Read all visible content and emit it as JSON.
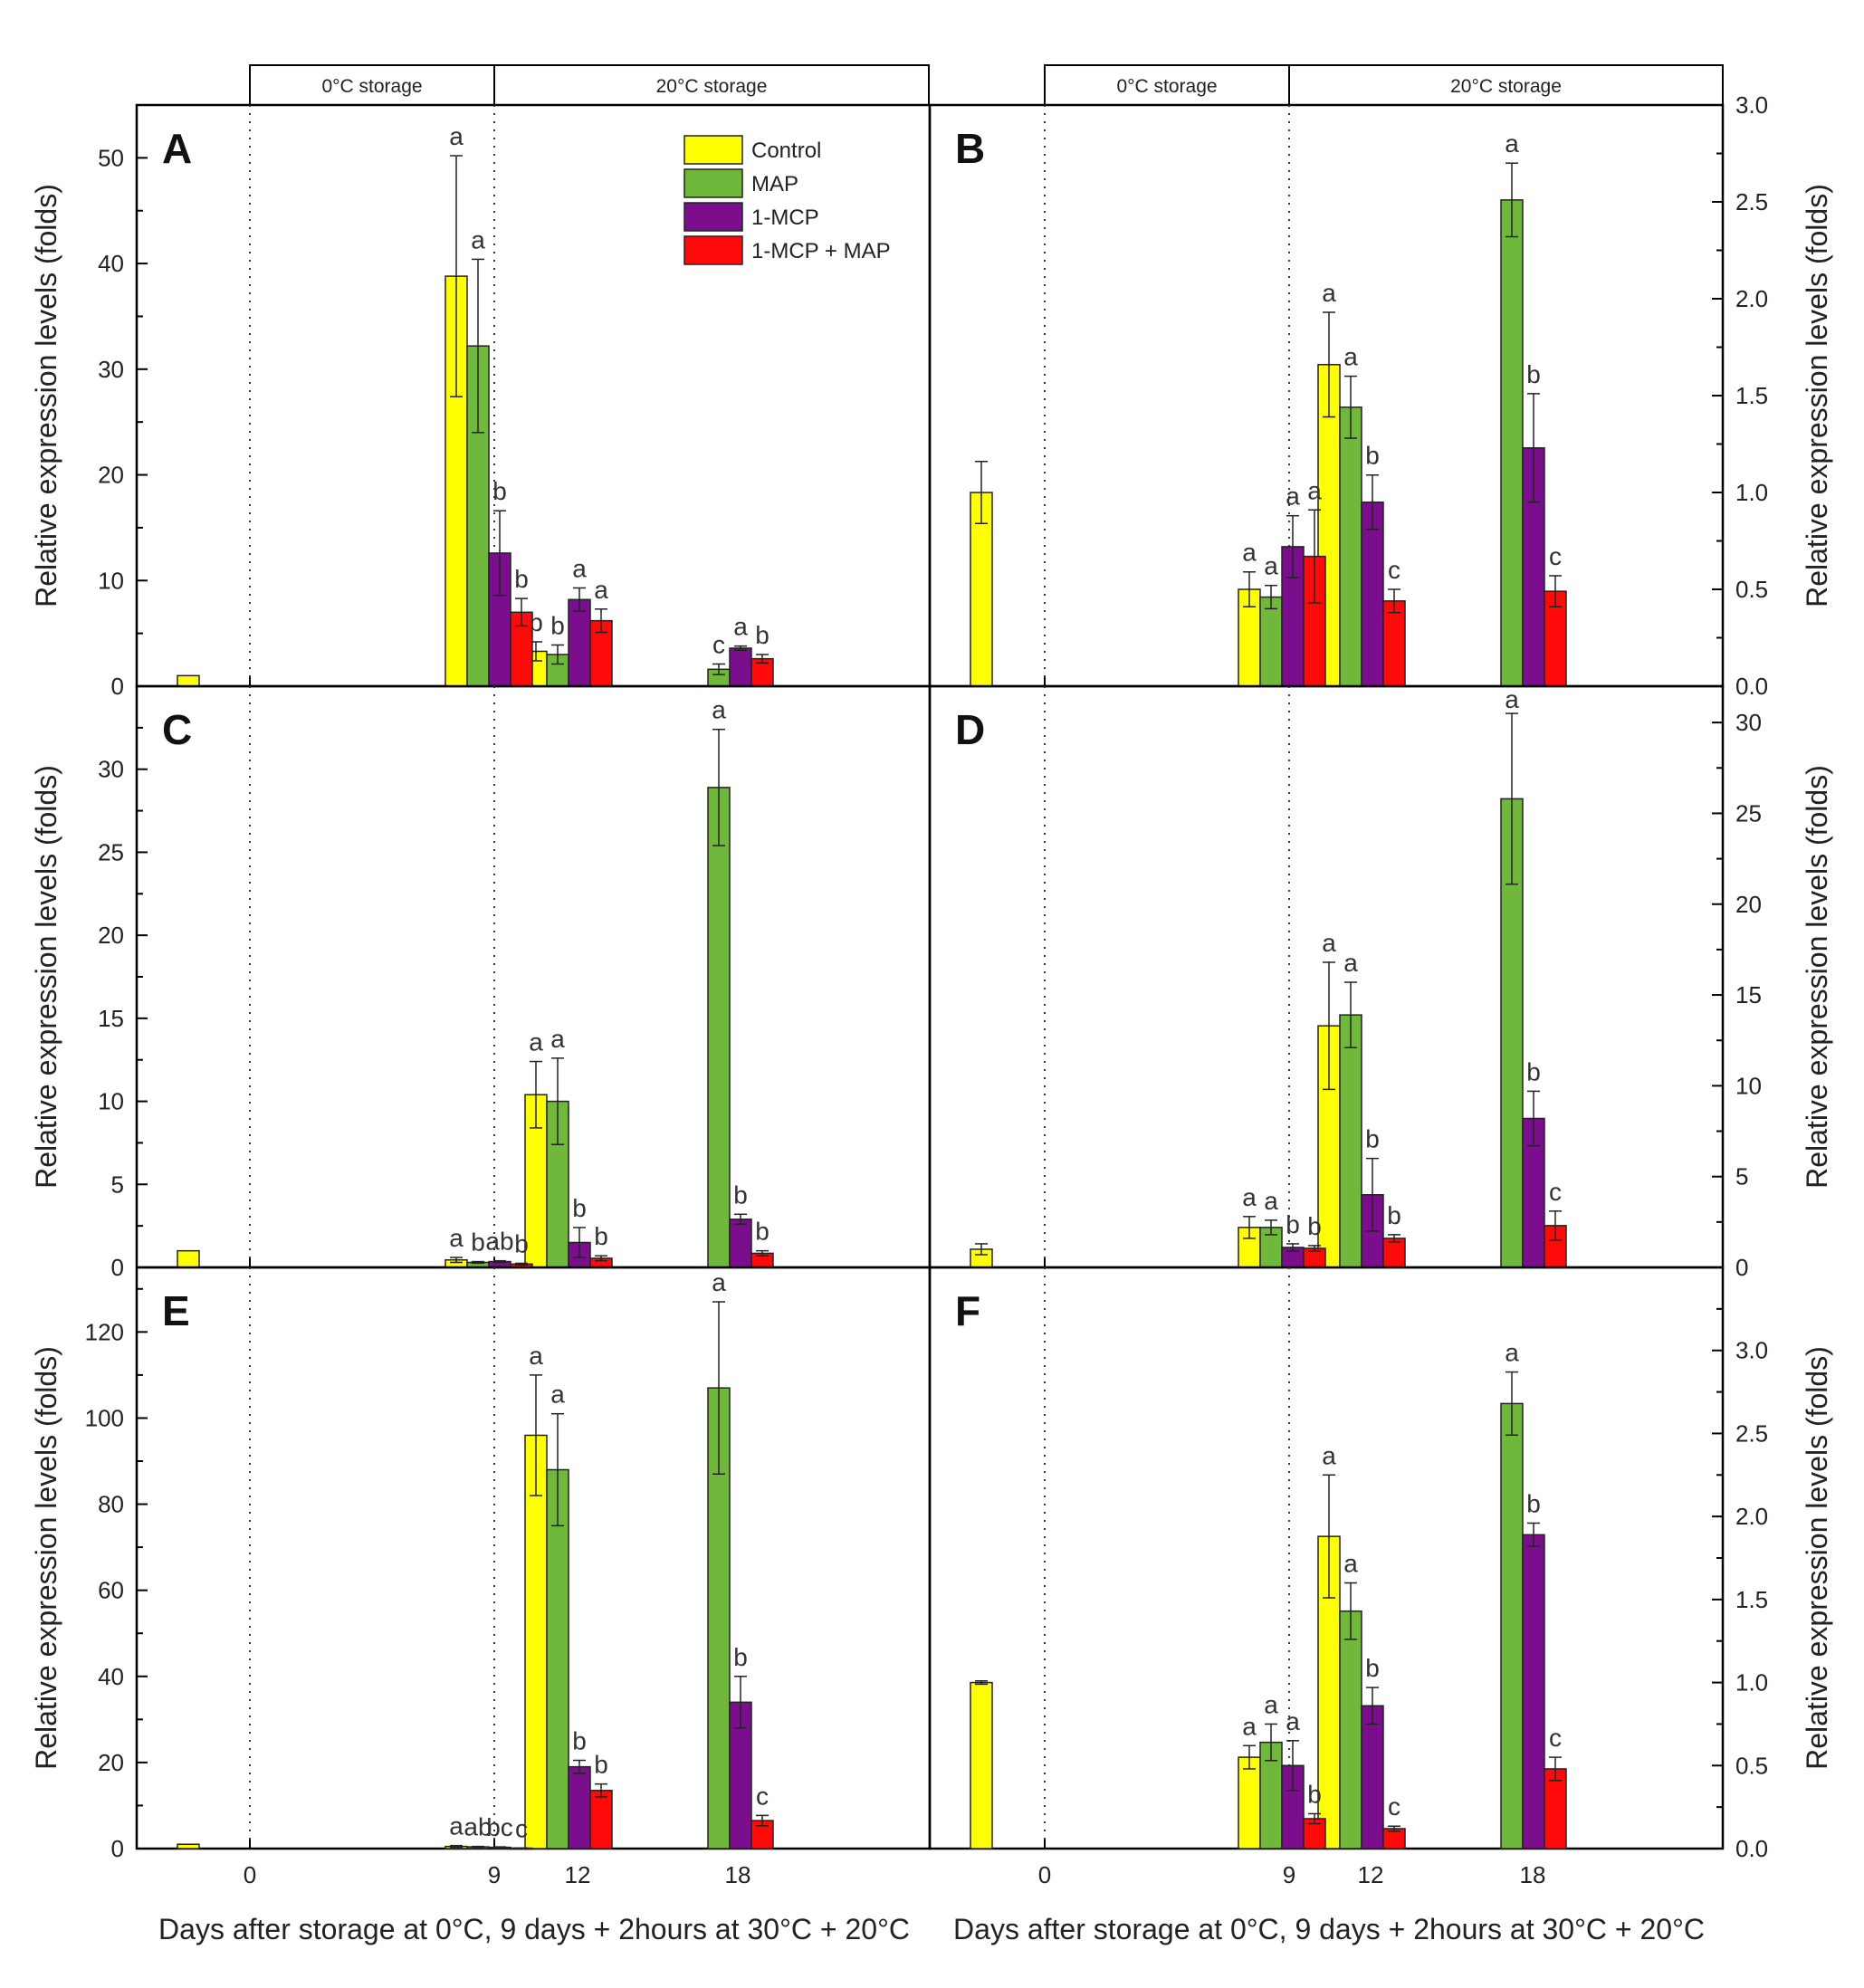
{
  "colors": {
    "Control": "#ffff00",
    "MAP": "#70b83c",
    "1-MCP": "#7a0e8c",
    "1-MCP + MAP": "#ff0a0a"
  },
  "header": {
    "cold_label": "0°C storage",
    "warm_label": "20°C storage"
  },
  "x_axis": {
    "ticks": [
      "0",
      "9",
      "12",
      "18"
    ],
    "title_left": "Days after storage at 0°C, 9 days + 2hours at 30°C + 20°C",
    "title_right": "Days after storage at 0°C, 9 days + 2hours at 30°C + 20°C"
  },
  "legend": [
    "Control",
    "MAP",
    "1-MCP",
    "1-MCP + MAP"
  ],
  "chart_data": [
    {
      "panel": "A",
      "type": "bar",
      "ylabel": "Relative expression levels (folds)",
      "ylim": [
        0,
        55
      ],
      "yticks": [
        0,
        10,
        20,
        30,
        40,
        50
      ],
      "ytick_labels": [
        "0",
        "10",
        "20",
        "30",
        "40",
        "50"
      ],
      "ytick_minor": 5,
      "series": [
        {
          "name": "Control",
          "points": [
            {
              "day": 0,
              "value": 1.0,
              "err": 0,
              "sig": ""
            },
            {
              "day": 9,
              "value": 38.8,
              "err": 11.4,
              "sig": "a"
            },
            {
              "day": 12,
              "value": 3.3,
              "err": 0.9,
              "sig": "b"
            }
          ]
        },
        {
          "name": "MAP",
          "points": [
            {
              "day": 9,
              "value": 32.2,
              "err": 8.2,
              "sig": "a"
            },
            {
              "day": 12,
              "value": 3.0,
              "err": 0.9,
              "sig": "b"
            },
            {
              "day": 18,
              "value": 1.6,
              "err": 0.5,
              "sig": "c"
            }
          ]
        },
        {
          "name": "1-MCP",
          "points": [
            {
              "day": 9,
              "value": 12.6,
              "err": 4.0,
              "sig": "b"
            },
            {
              "day": 12,
              "value": 8.2,
              "err": 1.1,
              "sig": "a"
            },
            {
              "day": 18,
              "value": 3.6,
              "err": 0.2,
              "sig": "a"
            }
          ]
        },
        {
          "name": "1-MCP + MAP",
          "points": [
            {
              "day": 9,
              "value": 7.0,
              "err": 1.3,
              "sig": "b"
            },
            {
              "day": 12,
              "value": 6.2,
              "err": 1.1,
              "sig": "a"
            },
            {
              "day": 18,
              "value": 2.6,
              "err": 0.4,
              "sig": "b"
            }
          ]
        }
      ]
    },
    {
      "panel": "B",
      "type": "bar",
      "ylabel": "Relative expression levels (folds)",
      "ylim": [
        0,
        3.0
      ],
      "yticks": [
        0,
        0.5,
        1.0,
        1.5,
        2.0,
        2.5,
        3.0
      ],
      "ytick_labels": [
        "0.0",
        "0.5",
        "1.0",
        "1.5",
        "2.0",
        "2.5",
        "3.0"
      ],
      "ytick_minor": 0.25,
      "series": [
        {
          "name": "Control",
          "points": [
            {
              "day": 0,
              "value": 1.0,
              "err": 0.16,
              "sig": ""
            },
            {
              "day": 9,
              "value": 0.5,
              "err": 0.09,
              "sig": "a"
            },
            {
              "day": 12,
              "value": 1.66,
              "err": 0.27,
              "sig": "a"
            }
          ]
        },
        {
          "name": "MAP",
          "points": [
            {
              "day": 9,
              "value": 0.46,
              "err": 0.06,
              "sig": "a"
            },
            {
              "day": 12,
              "value": 1.44,
              "err": 0.16,
              "sig": "a"
            },
            {
              "day": 18,
              "value": 2.51,
              "err": 0.19,
              "sig": "a"
            }
          ]
        },
        {
          "name": "1-MCP",
          "points": [
            {
              "day": 9,
              "value": 0.72,
              "err": 0.16,
              "sig": "a"
            },
            {
              "day": 12,
              "value": 0.95,
              "err": 0.14,
              "sig": "b"
            },
            {
              "day": 18,
              "value": 1.23,
              "err": 0.28,
              "sig": "b"
            }
          ]
        },
        {
          "name": "1-MCP + MAP",
          "points": [
            {
              "day": 9,
              "value": 0.67,
              "err": 0.24,
              "sig": "a"
            },
            {
              "day": 12,
              "value": 0.44,
              "err": 0.06,
              "sig": "c"
            },
            {
              "day": 18,
              "value": 0.49,
              "err": 0.08,
              "sig": "c"
            }
          ]
        }
      ]
    },
    {
      "panel": "C",
      "type": "bar",
      "ylabel": "Relative expression levels (folds)",
      "ylim": [
        0,
        35
      ],
      "yticks": [
        0,
        5,
        10,
        15,
        20,
        25,
        30
      ],
      "ytick_labels": [
        "0",
        "5",
        "10",
        "15",
        "20",
        "25",
        "30"
      ],
      "ytick_minor": 2.5,
      "series": [
        {
          "name": "Control",
          "points": [
            {
              "day": 0,
              "value": 1.0,
              "err": 0,
              "sig": ""
            },
            {
              "day": 9,
              "value": 0.45,
              "err": 0.15,
              "sig": "a"
            },
            {
              "day": 12,
              "value": 10.4,
              "err": 2.0,
              "sig": "a"
            }
          ]
        },
        {
          "name": "MAP",
          "points": [
            {
              "day": 9,
              "value": 0.3,
              "err": 0.05,
              "sig": "b"
            },
            {
              "day": 12,
              "value": 10.0,
              "err": 2.6,
              "sig": "a"
            },
            {
              "day": 18,
              "value": 28.9,
              "err": 3.5,
              "sig": "a"
            }
          ]
        },
        {
          "name": "1-MCP",
          "points": [
            {
              "day": 9,
              "value": 0.35,
              "err": 0.05,
              "sig": "ab"
            },
            {
              "day": 12,
              "value": 1.5,
              "err": 0.9,
              "sig": "b"
            },
            {
              "day": 18,
              "value": 2.9,
              "err": 0.3,
              "sig": "b"
            }
          ]
        },
        {
          "name": "1-MCP + MAP",
          "points": [
            {
              "day": 9,
              "value": 0.2,
              "err": 0.05,
              "sig": "b"
            },
            {
              "day": 12,
              "value": 0.55,
              "err": 0.15,
              "sig": "b"
            },
            {
              "day": 18,
              "value": 0.85,
              "err": 0.15,
              "sig": "b"
            }
          ]
        }
      ]
    },
    {
      "panel": "D",
      "type": "bar",
      "ylabel": "Relative expression levels (folds)",
      "ylim": [
        0,
        32
      ],
      "yticks": [
        0,
        5,
        10,
        15,
        20,
        25,
        30
      ],
      "ytick_labels": [
        "0",
        "5",
        "10",
        "15",
        "20",
        "25",
        "30"
      ],
      "ytick_minor": 2.5,
      "series": [
        {
          "name": "Control",
          "points": [
            {
              "day": 0,
              "value": 1.0,
              "err": 0.3,
              "sig": ""
            },
            {
              "day": 9,
              "value": 2.2,
              "err": 0.6,
              "sig": "a"
            },
            {
              "day": 12,
              "value": 13.3,
              "err": 3.5,
              "sig": "a"
            }
          ]
        },
        {
          "name": "MAP",
          "points": [
            {
              "day": 9,
              "value": 2.2,
              "err": 0.4,
              "sig": "a"
            },
            {
              "day": 12,
              "value": 13.9,
              "err": 1.8,
              "sig": "a"
            },
            {
              "day": 18,
              "value": 25.8,
              "err": 4.7,
              "sig": "a"
            }
          ]
        },
        {
          "name": "1-MCP",
          "points": [
            {
              "day": 9,
              "value": 1.1,
              "err": 0.2,
              "sig": "b"
            },
            {
              "day": 12,
              "value": 4.0,
              "err": 2.0,
              "sig": "b"
            },
            {
              "day": 18,
              "value": 8.2,
              "err": 1.5,
              "sig": "b"
            }
          ]
        },
        {
          "name": "1-MCP + MAP",
          "points": [
            {
              "day": 9,
              "value": 1.05,
              "err": 0.15,
              "sig": "b"
            },
            {
              "day": 12,
              "value": 1.6,
              "err": 0.2,
              "sig": "b"
            },
            {
              "day": 18,
              "value": 2.3,
              "err": 0.8,
              "sig": "c"
            }
          ]
        }
      ]
    },
    {
      "panel": "E",
      "type": "bar",
      "ylabel": "Relative expression levels (folds)",
      "ylim": [
        0,
        135
      ],
      "yticks": [
        0,
        20,
        40,
        60,
        80,
        100,
        120
      ],
      "ytick_labels": [
        "0",
        "20",
        "40",
        "60",
        "80",
        "100",
        "120"
      ],
      "ytick_minor": 10,
      "series": [
        {
          "name": "Control",
          "points": [
            {
              "day": 0,
              "value": 1.0,
              "err": 0,
              "sig": ""
            },
            {
              "day": 9,
              "value": 0.5,
              "err": 0.2,
              "sig": "a"
            },
            {
              "day": 12,
              "value": 96,
              "err": 14,
              "sig": "a"
            }
          ]
        },
        {
          "name": "MAP",
          "points": [
            {
              "day": 9,
              "value": 0.4,
              "err": 0.1,
              "sig": "ab"
            },
            {
              "day": 12,
              "value": 88,
              "err": 13,
              "sig": "a"
            },
            {
              "day": 18,
              "value": 107,
              "err": 20,
              "sig": "a"
            }
          ]
        },
        {
          "name": "1-MCP",
          "points": [
            {
              "day": 9,
              "value": 0.3,
              "err": 0.1,
              "sig": "bc"
            },
            {
              "day": 12,
              "value": 19,
              "err": 1.5,
              "sig": "b"
            },
            {
              "day": 18,
              "value": 34,
              "err": 6,
              "sig": "b"
            }
          ]
        },
        {
          "name": "1-MCP + MAP",
          "points": [
            {
              "day": 9,
              "value": 0.1,
              "err": 0.05,
              "sig": "c"
            },
            {
              "day": 12,
              "value": 13.5,
              "err": 1.5,
              "sig": "b"
            },
            {
              "day": 18,
              "value": 6.5,
              "err": 1.2,
              "sig": "c"
            }
          ]
        }
      ]
    },
    {
      "panel": "F",
      "type": "bar",
      "ylabel": "Relative expression levels (folds)",
      "ylim": [
        0,
        3.5
      ],
      "yticks": [
        0,
        0.5,
        1.0,
        1.5,
        2.0,
        2.5,
        3.0
      ],
      "ytick_labels": [
        "0.0",
        "0.5",
        "1.0",
        "1.5",
        "2.0",
        "2.5",
        "3.0"
      ],
      "ytick_minor": 0.25,
      "series": [
        {
          "name": "Control",
          "points": [
            {
              "day": 0,
              "value": 1.0,
              "err": 0.01,
              "sig": ""
            },
            {
              "day": 9,
              "value": 0.55,
              "err": 0.07,
              "sig": "a"
            },
            {
              "day": 12,
              "value": 1.88,
              "err": 0.37,
              "sig": "a"
            }
          ]
        },
        {
          "name": "MAP",
          "points": [
            {
              "day": 9,
              "value": 0.64,
              "err": 0.11,
              "sig": "a"
            },
            {
              "day": 12,
              "value": 1.43,
              "err": 0.17,
              "sig": "a"
            },
            {
              "day": 18,
              "value": 2.68,
              "err": 0.19,
              "sig": "a"
            }
          ]
        },
        {
          "name": "1-MCP",
          "points": [
            {
              "day": 9,
              "value": 0.5,
              "err": 0.15,
              "sig": "a"
            },
            {
              "day": 12,
              "value": 0.86,
              "err": 0.11,
              "sig": "b"
            },
            {
              "day": 18,
              "value": 1.89,
              "err": 0.07,
              "sig": "b"
            }
          ]
        },
        {
          "name": "1-MCP + MAP",
          "points": [
            {
              "day": 9,
              "value": 0.18,
              "err": 0.03,
              "sig": "b"
            },
            {
              "day": 12,
              "value": 0.12,
              "err": 0.015,
              "sig": "c"
            },
            {
              "day": 18,
              "value": 0.48,
              "err": 0.07,
              "sig": "c"
            }
          ]
        }
      ]
    }
  ]
}
